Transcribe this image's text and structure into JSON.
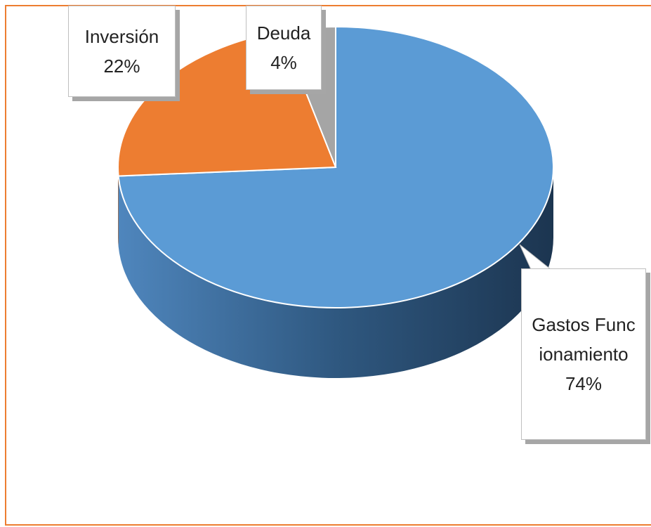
{
  "chart_data": {
    "type": "pie",
    "categories": [
      "Gastos Funcionamiento",
      "Inversión",
      "Deuda"
    ],
    "values": [
      74,
      22,
      4
    ],
    "value_labels": [
      "74%",
      "22%",
      "4%"
    ],
    "colors": [
      "#5b9bd5",
      "#ed7d31",
      "#a5a5a5"
    ]
  }
}
